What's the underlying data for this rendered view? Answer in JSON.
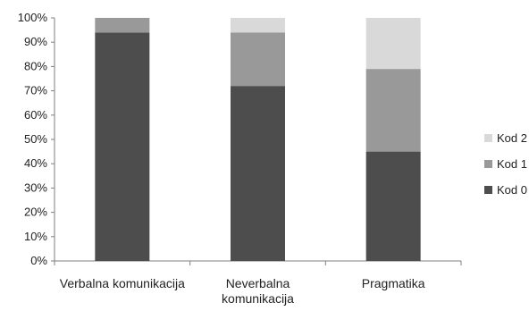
{
  "chart_data": {
    "type": "bar",
    "stacked": true,
    "categories": [
      "Verbalna komunikacija",
      "Neverbalna komunikacija",
      "Pragmatika"
    ],
    "category_lines": [
      [
        "Verbalna komunikacija"
      ],
      [
        "Neverbalna",
        "komunikacija"
      ],
      [
        "Pragmatika"
      ]
    ],
    "series": [
      {
        "name": "Kod 0",
        "values": [
          94,
          72,
          45
        ],
        "color": "#4d4d4d"
      },
      {
        "name": "Kod 1",
        "values": [
          6,
          22,
          34
        ],
        "color": "#999999"
      },
      {
        "name": "Kod 2",
        "values": [
          0,
          6,
          21
        ],
        "color": "#d9d9d9"
      }
    ],
    "ylim": [
      0,
      100
    ],
    "y_ticks": [
      "0%",
      "10%",
      "20%",
      "30%",
      "40%",
      "50%",
      "60%",
      "70%",
      "80%",
      "90%",
      "100%"
    ],
    "title": "",
    "xlabel": "",
    "ylabel": "",
    "grid": false,
    "legend_position": "right"
  }
}
